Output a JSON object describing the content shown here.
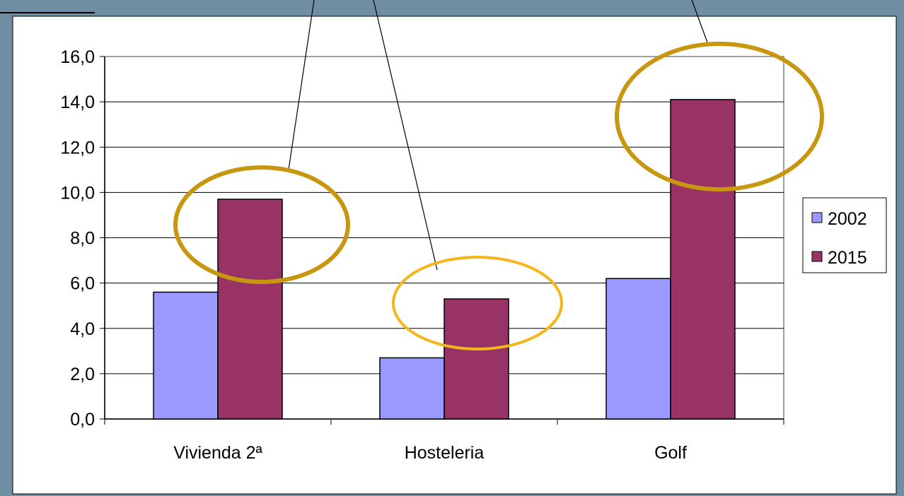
{
  "chart_data": {
    "type": "bar",
    "categories": [
      "Vivienda 2ª",
      "Hosteleria",
      "Golf"
    ],
    "series": [
      {
        "name": "2002",
        "values": [
          5.6,
          2.7,
          6.2
        ],
        "color": "#9999ff"
      },
      {
        "name": "2015",
        "values": [
          9.7,
          5.3,
          14.1
        ],
        "color": "#993366"
      }
    ],
    "ylim": [
      0,
      16
    ],
    "yticks": [
      "0,0",
      "2,0",
      "4,0",
      "6,0",
      "8,0",
      "10,0",
      "12,0",
      "14,0",
      "16,0"
    ],
    "grid": true,
    "legend": "right",
    "highlight_color_dark": "#c9960f",
    "highlight_color_light": "#f5b51b",
    "background_color": "#6f8ea3"
  }
}
